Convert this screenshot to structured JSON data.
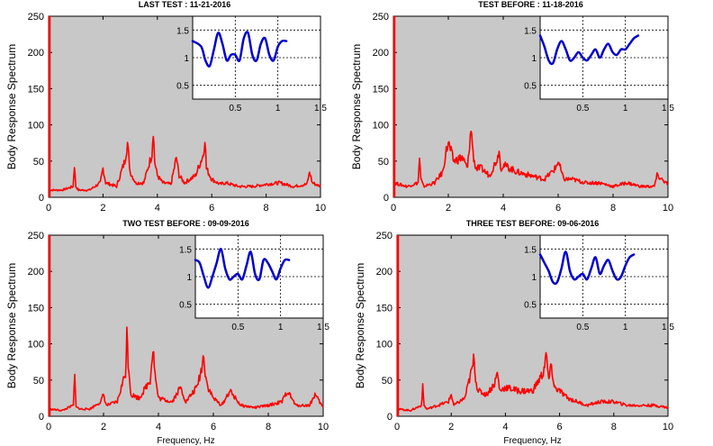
{
  "colors": {
    "background": "#c8c8c8",
    "main_series": "#ff0000",
    "inset_series": "#0000cc"
  },
  "chart_data": [
    {
      "type": "line",
      "title": "LAST TEST : 11-21-2016",
      "ylabel": "Body Response Spectrum",
      "xlabel": "",
      "xlim": [
        0,
        10
      ],
      "ylim": [
        0,
        250
      ],
      "xticks": [
        "0",
        "2",
        "4",
        "6",
        "8",
        "10"
      ],
      "yticks": [
        "0",
        "50",
        "100",
        "150",
        "200",
        "250"
      ],
      "grid": false,
      "series": [
        {
          "x": [
            0,
            0.5,
            0.9,
            0.95,
            1.0,
            1.1,
            1.5,
            1.9,
            2.0,
            2.1,
            2.5,
            2.8,
            2.9,
            3.0,
            3.2,
            3.5,
            3.8,
            3.85,
            3.9,
            4.0,
            4.2,
            4.5,
            4.7,
            4.8,
            5.0,
            5.4,
            5.7,
            5.75,
            5.8,
            6.0,
            6.3,
            6.5,
            7.0,
            7.5,
            8.0,
            8.5,
            9.0,
            9.5,
            9.6,
            9.7,
            10
          ],
          "y": [
            10,
            10,
            15,
            45,
            15,
            10,
            10,
            20,
            40,
            20,
            15,
            50,
            75,
            35,
            20,
            20,
            60,
            95,
            50,
            30,
            20,
            18,
            55,
            30,
            20,
            30,
            60,
            85,
            40,
            25,
            18,
            20,
            15,
            15,
            18,
            20,
            15,
            18,
            35,
            20,
            15
          ]
        }
      ],
      "inset": {
        "xlim": [
          0,
          1.5
        ],
        "ylim": [
          0.25,
          1.75
        ],
        "xticks": [
          "0.5",
          "1",
          "1.5"
        ],
        "yticks": [
          "0.5",
          "1",
          "1.5"
        ],
        "grid": true,
        "x": [
          0,
          0.1,
          0.15,
          0.2,
          0.25,
          0.3,
          0.35,
          0.4,
          0.45,
          0.5,
          0.55,
          0.6,
          0.65,
          0.7,
          0.75,
          0.8,
          0.85,
          0.9,
          0.95,
          1.0,
          1.05,
          1.1
        ],
        "y": [
          1.3,
          1.2,
          0.95,
          0.85,
          1.15,
          1.45,
          1.25,
          0.95,
          1.05,
          1.05,
          0.95,
          1.35,
          1.45,
          1.05,
          0.95,
          1.25,
          1.35,
          1.05,
          0.95,
          1.2,
          1.3,
          1.3
        ]
      }
    },
    {
      "type": "line",
      "title": "TEST BEFORE : 11-18-2016",
      "ylabel": "Body Response Spectrum",
      "xlabel": "",
      "xlim": [
        0,
        10
      ],
      "ylim": [
        0,
        250
      ],
      "xticks": [
        "0",
        "2",
        "4",
        "6",
        "8",
        "10"
      ],
      "yticks": [
        "0",
        "50",
        "100",
        "150",
        "200",
        "250"
      ],
      "grid": false,
      "series": [
        {
          "x": [
            0,
            0.5,
            0.9,
            0.95,
            1.0,
            1.1,
            1.5,
            1.8,
            1.9,
            2.0,
            2.2,
            2.5,
            2.7,
            2.8,
            2.85,
            2.9,
            3.0,
            3.2,
            3.5,
            3.8,
            3.85,
            3.9,
            4.0,
            4.5,
            5.0,
            5.5,
            5.9,
            6.0,
            6.2,
            6.5,
            7.0,
            7.5,
            8.0,
            8.5,
            9.0,
            9.5,
            9.6,
            10
          ],
          "y": [
            20,
            15,
            20,
            55,
            25,
            15,
            20,
            35,
            60,
            75,
            50,
            55,
            40,
            85,
            90,
            60,
            40,
            40,
            30,
            55,
            70,
            40,
            45,
            35,
            30,
            25,
            40,
            50,
            25,
            25,
            20,
            20,
            15,
            20,
            15,
            15,
            30,
            18
          ]
        }
      ],
      "inset": {
        "xlim": [
          0,
          1.5
        ],
        "ylim": [
          0.25,
          1.75
        ],
        "xticks": [
          "0.5",
          "1",
          "1.5"
        ],
        "yticks": [
          "0.5",
          "1",
          "1.5"
        ],
        "grid": true,
        "x": [
          0,
          0.05,
          0.1,
          0.15,
          0.2,
          0.25,
          0.3,
          0.35,
          0.4,
          0.45,
          0.5,
          0.55,
          0.6,
          0.65,
          0.7,
          0.75,
          0.8,
          0.85,
          0.9,
          0.95,
          1.0,
          1.05,
          1.1,
          1.15
        ],
        "y": [
          1.4,
          1.2,
          0.95,
          0.9,
          1.15,
          1.3,
          1.15,
          0.95,
          1.0,
          1.1,
          1.0,
          0.95,
          1.05,
          1.15,
          1.0,
          1.15,
          1.25,
          1.1,
          1.05,
          1.15,
          1.15,
          1.25,
          1.35,
          1.4
        ]
      }
    },
    {
      "type": "line",
      "title": "TWO TEST BEFORE : 09-09-2016",
      "ylabel": "Body Response Spectrum",
      "xlabel": "Frequency, Hz",
      "xlim": [
        0,
        10
      ],
      "ylim": [
        0,
        250
      ],
      "xticks": [
        "0",
        "2",
        "4",
        "6",
        "8",
        "10"
      ],
      "yticks": [
        "0",
        "50",
        "100",
        "150",
        "200",
        "250"
      ],
      "grid": false,
      "series": [
        {
          "x": [
            0,
            0.5,
            0.9,
            0.95,
            1.0,
            1.1,
            1.5,
            1.9,
            2.0,
            2.1,
            2.5,
            2.8,
            2.85,
            2.9,
            3.0,
            3.3,
            3.7,
            3.8,
            3.9,
            4.0,
            4.5,
            4.8,
            5.0,
            5.4,
            5.6,
            5.65,
            5.7,
            5.8,
            6.0,
            6.3,
            6.6,
            7.0,
            7.5,
            8.0,
            8.5,
            8.7,
            9.0,
            9.5,
            9.7,
            10
          ],
          "y": [
            10,
            8,
            15,
            55,
            15,
            10,
            10,
            20,
            30,
            15,
            20,
            60,
            115,
            75,
            30,
            25,
            50,
            95,
            50,
            25,
            20,
            40,
            20,
            40,
            70,
            90,
            60,
            40,
            25,
            15,
            35,
            15,
            12,
            15,
            20,
            35,
            15,
            15,
            30,
            12
          ]
        }
      ],
      "inset": {
        "xlim": [
          0,
          1.5
        ],
        "ylim": [
          0.25,
          1.75
        ],
        "xticks": [
          "0.5",
          "1",
          "1.5"
        ],
        "yticks": [
          "0.5",
          "1",
          "1.5"
        ],
        "grid": true,
        "x": [
          0,
          0.05,
          0.1,
          0.15,
          0.2,
          0.25,
          0.3,
          0.35,
          0.4,
          0.45,
          0.5,
          0.55,
          0.6,
          0.65,
          0.7,
          0.75,
          0.8,
          0.85,
          0.9,
          0.95,
          1.0,
          1.05,
          1.1
        ],
        "y": [
          1.3,
          1.25,
          1.0,
          0.8,
          1.0,
          1.25,
          1.5,
          1.15,
          0.95,
          1.0,
          1.05,
          0.95,
          1.2,
          1.45,
          1.05,
          0.95,
          1.3,
          1.25,
          1.1,
          0.95,
          1.15,
          1.3,
          1.3
        ]
      }
    },
    {
      "type": "line",
      "title": "THREE TEST BEFORE:   09-06-2016",
      "ylabel": "Body Response Spectrum",
      "xlabel": "Frequency, Hz",
      "xlim": [
        0,
        10
      ],
      "ylim": [
        0,
        250
      ],
      "xticks": [
        "0",
        "2",
        "4",
        "6",
        "8",
        "10"
      ],
      "yticks": [
        "0",
        "50",
        "100",
        "150",
        "200",
        "250"
      ],
      "grid": false,
      "series": [
        {
          "x": [
            0,
            0.5,
            0.9,
            0.95,
            1.0,
            1.1,
            1.5,
            1.9,
            2.0,
            2.1,
            2.5,
            2.8,
            2.85,
            2.9,
            3.0,
            3.3,
            3.6,
            3.7,
            3.8,
            4.0,
            4.5,
            5.0,
            5.4,
            5.5,
            5.6,
            5.7,
            5.8,
            6.0,
            6.3,
            7.0,
            7.5,
            8.0,
            8.5,
            9.0,
            9.5,
            10
          ],
          "y": [
            10,
            8,
            15,
            40,
            15,
            10,
            15,
            20,
            30,
            15,
            25,
            70,
            85,
            50,
            35,
            30,
            45,
            60,
            35,
            40,
            35,
            35,
            60,
            85,
            50,
            70,
            40,
            35,
            25,
            15,
            20,
            20,
            15,
            15,
            15,
            12
          ]
        }
      ],
      "inset": {
        "xlim": [
          0,
          1.5
        ],
        "ylim": [
          0.25,
          1.75
        ],
        "xticks": [
          "0.5",
          "1",
          "1.5"
        ],
        "yticks": [
          "0.5",
          "1",
          "1.5"
        ],
        "grid": true,
        "x": [
          0,
          0.05,
          0.1,
          0.15,
          0.2,
          0.25,
          0.3,
          0.35,
          0.4,
          0.45,
          0.5,
          0.55,
          0.6,
          0.65,
          0.7,
          0.75,
          0.8,
          0.85,
          0.9,
          0.95,
          1.0,
          1.05,
          1.1
        ],
        "y": [
          1.4,
          1.25,
          1.1,
          0.9,
          0.9,
          1.15,
          1.45,
          1.1,
          0.95,
          1.0,
          1.05,
          0.95,
          1.15,
          1.35,
          1.05,
          1.2,
          1.3,
          1.1,
          0.95,
          1.0,
          1.2,
          1.35,
          1.4
        ]
      }
    }
  ]
}
